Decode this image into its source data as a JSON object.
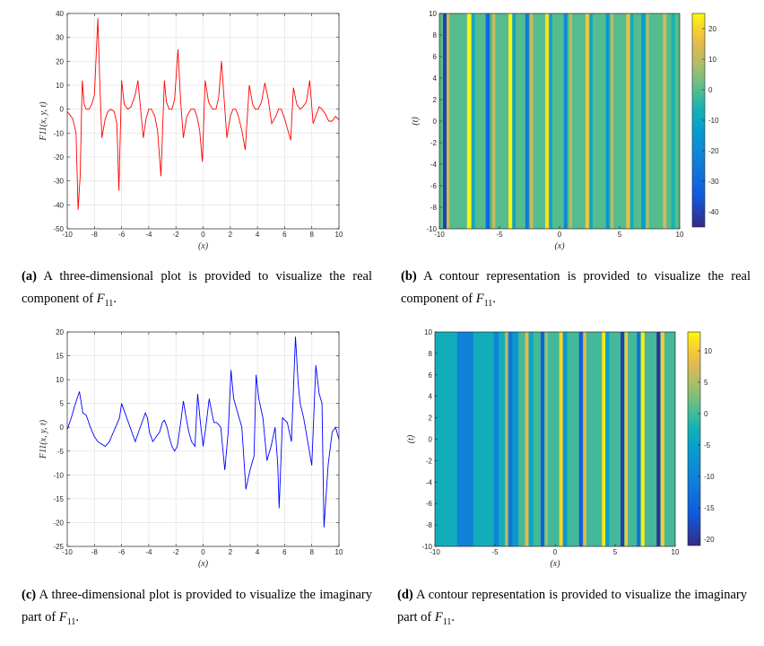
{
  "figures": [
    {
      "id": "a",
      "caption": {
        "label": "(a)",
        "text": "A three-dimensional plot is provided to visualize the real component of",
        "symbol": "F",
        "subscript": "11",
        "end": "."
      }
    },
    {
      "id": "b",
      "caption": {
        "label": "(b)",
        "text": "A contour representation is provided to visualize the real component of",
        "symbol": "F",
        "subscript": "11",
        "end": "."
      }
    },
    {
      "id": "c",
      "caption": {
        "label": "(c)",
        "text": "A three-dimensional plot is provided to visualize the imaginary part of",
        "symbol": "F",
        "subscript": "11",
        "end": "."
      }
    },
    {
      "id": "d",
      "caption": {
        "label": "(d)",
        "text": "A contour representation is provided to visualize the imaginary part of",
        "symbol": "F",
        "subscript": "11",
        "end": "."
      }
    }
  ],
  "chart_data": [
    {
      "id": "a",
      "type": "line",
      "title": "",
      "xlabel": "(x)",
      "ylabel": "F11(x, y, t)",
      "xlim": [
        -10,
        10
      ],
      "ylim": [
        -50,
        40
      ],
      "xticks": [
        -10,
        -8,
        -6,
        -4,
        -2,
        0,
        2,
        4,
        6,
        8,
        10
      ],
      "yticks": [
        -50,
        -40,
        -30,
        -20,
        -10,
        0,
        10,
        20,
        30,
        40
      ],
      "grid": true,
      "color": "#ff0000",
      "x": [
        -10,
        -9.6,
        -9.35,
        -9.2,
        -9.05,
        -8.9,
        -8.75,
        -8.6,
        -8.4,
        -8.2,
        -8.0,
        -7.75,
        -7.6,
        -7.45,
        -7.2,
        -7.0,
        -6.8,
        -6.55,
        -6.35,
        -6.2,
        -6.0,
        -5.8,
        -5.55,
        -5.3,
        -5.0,
        -4.8,
        -4.6,
        -4.4,
        -4.2,
        -4.0,
        -3.8,
        -3.55,
        -3.35,
        -3.1,
        -2.85,
        -2.7,
        -2.5,
        -2.3,
        -2.1,
        -1.85,
        -1.65,
        -1.45,
        -1.2,
        -0.9,
        -0.65,
        -0.45,
        -0.25,
        -0.05,
        0.15,
        0.4,
        0.7,
        0.95,
        1.15,
        1.35,
        1.55,
        1.75,
        2.0,
        2.2,
        2.4,
        2.6,
        2.85,
        3.1,
        3.4,
        3.65,
        3.85,
        4.05,
        4.3,
        4.55,
        4.8,
        5.05,
        5.35,
        5.55,
        5.75,
        6.0,
        6.25,
        6.45,
        6.65,
        6.9,
        7.15,
        7.35,
        7.6,
        7.85,
        8.1,
        8.35,
        8.55,
        8.75,
        9.0,
        9.25,
        9.5,
        9.75,
        10
      ],
      "values": [
        -1,
        -4,
        -10,
        -42,
        -28,
        12,
        2,
        0,
        0,
        2,
        6,
        38,
        10,
        -12,
        -4,
        -1,
        0,
        -1,
        -6,
        -34,
        12,
        2,
        0,
        1,
        6,
        12,
        0,
        -12,
        -4,
        0,
        0,
        -3,
        -9,
        -28,
        12,
        3,
        0,
        0,
        4,
        25,
        3,
        -12,
        -3,
        0,
        0,
        -3,
        -9,
        -22,
        12,
        3,
        0,
        0,
        5,
        20,
        4,
        -12,
        -3,
        0,
        0,
        -3,
        -9,
        -17,
        10,
        2,
        0,
        0,
        3,
        11,
        4,
        -6,
        -3,
        0,
        0,
        -4,
        -9,
        -13,
        9,
        2,
        0,
        1,
        3,
        12,
        -6,
        -2,
        1,
        0,
        -2,
        -5,
        -5,
        -3,
        -4.5
      ]
    },
    {
      "id": "b",
      "type": "heatmap",
      "xlabel": "(x)",
      "ylabel": "(t)",
      "xlim": [
        -10,
        10
      ],
      "ylim": [
        -10,
        10
      ],
      "xticks": [
        -10,
        -5,
        0,
        5,
        10
      ],
      "yticks": [
        -10,
        -8,
        -6,
        -4,
        -2,
        0,
        2,
        4,
        6,
        8,
        10
      ],
      "colorbar": {
        "min": -45,
        "max": 25,
        "ticks": [
          20,
          10,
          0,
          -10,
          -20,
          -30,
          -40
        ]
      },
      "stripes": [
        {
          "x": -9.7,
          "w": 0.3,
          "v": -40
        },
        {
          "x": -9.4,
          "w": 0.25,
          "v": 12
        },
        {
          "x": -7.7,
          "w": 0.35,
          "v": 24
        },
        {
          "x": -7.3,
          "w": 0.25,
          "v": -10
        },
        {
          "x": -6.15,
          "w": 0.35,
          "v": -30
        },
        {
          "x": -5.6,
          "w": 0.25,
          "v": 12
        },
        {
          "x": -4.25,
          "w": 0.3,
          "v": 24
        },
        {
          "x": -3.9,
          "w": 0.25,
          "v": -10
        },
        {
          "x": -2.85,
          "w": 0.3,
          "v": -25
        },
        {
          "x": -2.45,
          "w": 0.25,
          "v": 12
        },
        {
          "x": -1.2,
          "w": 0.3,
          "v": 22
        },
        {
          "x": -0.85,
          "w": 0.25,
          "v": -10
        },
        {
          "x": 0.35,
          "w": 0.3,
          "v": -20
        },
        {
          "x": 0.8,
          "w": 0.25,
          "v": 10
        },
        {
          "x": 2.15,
          "w": 0.3,
          "v": 18
        },
        {
          "x": 2.5,
          "w": 0.25,
          "v": -10
        },
        {
          "x": 3.85,
          "w": 0.3,
          "v": -15
        },
        {
          "x": 4.25,
          "w": 0.25,
          "v": 10
        },
        {
          "x": 5.55,
          "w": 0.3,
          "v": 16
        },
        {
          "x": 5.9,
          "w": 0.25,
          "v": -8
        },
        {
          "x": 6.8,
          "w": 0.35,
          "v": -13
        },
        {
          "x": 7.2,
          "w": 0.25,
          "v": 8
        },
        {
          "x": 8.6,
          "w": 0.3,
          "v": 12
        },
        {
          "x": 9.3,
          "w": 0.3,
          "v": -6
        }
      ]
    },
    {
      "id": "c",
      "type": "line",
      "title": "",
      "xlabel": "(x)",
      "ylabel": "F11(x, y, t)",
      "xlim": [
        -10,
        10
      ],
      "ylim": [
        -25,
        20
      ],
      "xticks": [
        -10,
        -8,
        -6,
        -4,
        -2,
        0,
        2,
        4,
        6,
        8,
        10
      ],
      "yticks": [
        -25,
        -20,
        -15,
        -10,
        -5,
        0,
        5,
        10,
        15,
        20
      ],
      "grid": true,
      "color": "#0000ff",
      "x": [
        -10,
        -9.7,
        -9.4,
        -9.1,
        -8.85,
        -8.6,
        -8.3,
        -8.0,
        -7.75,
        -7.5,
        -7.2,
        -6.9,
        -6.6,
        -6.3,
        -6.15,
        -6.0,
        -5.75,
        -5.5,
        -5.25,
        -5.0,
        -4.75,
        -4.5,
        -4.25,
        -4.1,
        -3.95,
        -3.7,
        -3.45,
        -3.2,
        -3.0,
        -2.85,
        -2.65,
        -2.5,
        -2.3,
        -2.1,
        -1.9,
        -1.65,
        -1.45,
        -1.25,
        -1.05,
        -0.85,
        -0.6,
        -0.4,
        -0.2,
        0.0,
        0.2,
        0.45,
        0.65,
        0.8,
        1.0,
        1.3,
        1.6,
        1.85,
        2.05,
        2.25,
        2.55,
        2.85,
        3.15,
        3.45,
        3.75,
        3.9,
        4.1,
        4.4,
        4.7,
        5.0,
        5.3,
        5.5,
        5.6,
        5.85,
        6.2,
        6.5,
        6.8,
        7.0,
        7.15,
        7.4,
        7.7,
        8.0,
        8.3,
        8.55,
        8.75,
        8.9,
        9.2,
        9.5,
        9.75,
        10
      ],
      "values": [
        -0.5,
        2,
        5,
        7.5,
        3,
        2.5,
        0,
        -2,
        -3,
        -3.5,
        -4,
        -3,
        -1,
        1,
        2,
        5,
        3,
        1,
        -1,
        -3,
        -1,
        1,
        3,
        2,
        -1,
        -3,
        -2,
        -1,
        1,
        1.5,
        0,
        -2,
        -4,
        -5,
        -4,
        1,
        5.5,
        2,
        -1,
        -3,
        -4,
        7,
        1,
        -4,
        0,
        6,
        3,
        1,
        1,
        0,
        -9,
        -1,
        12,
        6,
        3,
        0,
        -13,
        -9,
        -6,
        11,
        6,
        2,
        -7,
        -4,
        0,
        -8,
        -17,
        2,
        1,
        -3,
        19,
        9,
        5,
        2,
        -3,
        -8,
        13,
        7,
        5,
        -21,
        -8,
        -1,
        0,
        -2.5
      ]
    },
    {
      "id": "d",
      "type": "heatmap",
      "xlabel": "(x)",
      "ylabel": "(t)",
      "xlim": [
        -10,
        10
      ],
      "ylim": [
        -10,
        10
      ],
      "xticks": [
        -10,
        -5,
        0,
        5,
        10
      ],
      "yticks": [
        -10,
        -8,
        -6,
        -4,
        -2,
        0,
        2,
        4,
        6,
        8,
        10
      ],
      "colorbar": {
        "min": -21,
        "max": 13,
        "ticks": [
          10,
          5,
          0,
          -5,
          -10,
          -15,
          -20
        ]
      },
      "stripes": [
        {
          "x": -10,
          "w": 1.9,
          "v": -3
        },
        {
          "x": -8.15,
          "w": 1.35,
          "v": -10
        },
        {
          "x": -6.8,
          "w": 1.7,
          "v": -3
        },
        {
          "x": -5.1,
          "w": 0.4,
          "v": -10
        },
        {
          "x": -4.7,
          "w": 0.5,
          "v": -3
        },
        {
          "x": -4.15,
          "w": 0.25,
          "v": 6
        },
        {
          "x": -3.9,
          "w": 0.35,
          "v": -12
        },
        {
          "x": -3.55,
          "w": 0.5,
          "v": -6
        },
        {
          "x": -2.5,
          "w": 0.3,
          "v": 8
        },
        {
          "x": -2.2,
          "w": 0.4,
          "v": -4
        },
        {
          "x": -1.2,
          "w": 0.3,
          "v": -15
        },
        {
          "x": -0.85,
          "w": 0.25,
          "v": 4
        },
        {
          "x": 0.35,
          "w": 0.3,
          "v": 11
        },
        {
          "x": 0.65,
          "w": 0.35,
          "v": -6
        },
        {
          "x": 2.0,
          "w": 0.3,
          "v": -16
        },
        {
          "x": 2.35,
          "w": 0.25,
          "v": 8
        },
        {
          "x": 3.9,
          "w": 0.3,
          "v": 12
        },
        {
          "x": 4.2,
          "w": 0.3,
          "v": -5
        },
        {
          "x": 5.45,
          "w": 0.3,
          "v": -19
        },
        {
          "x": 5.8,
          "w": 0.25,
          "v": 10
        },
        {
          "x": 6.8,
          "w": 0.3,
          "v": -12
        },
        {
          "x": 7.15,
          "w": 0.3,
          "v": 12
        },
        {
          "x": 8.45,
          "w": 0.3,
          "v": -20
        },
        {
          "x": 8.8,
          "w": 0.3,
          "v": 10
        }
      ]
    }
  ]
}
